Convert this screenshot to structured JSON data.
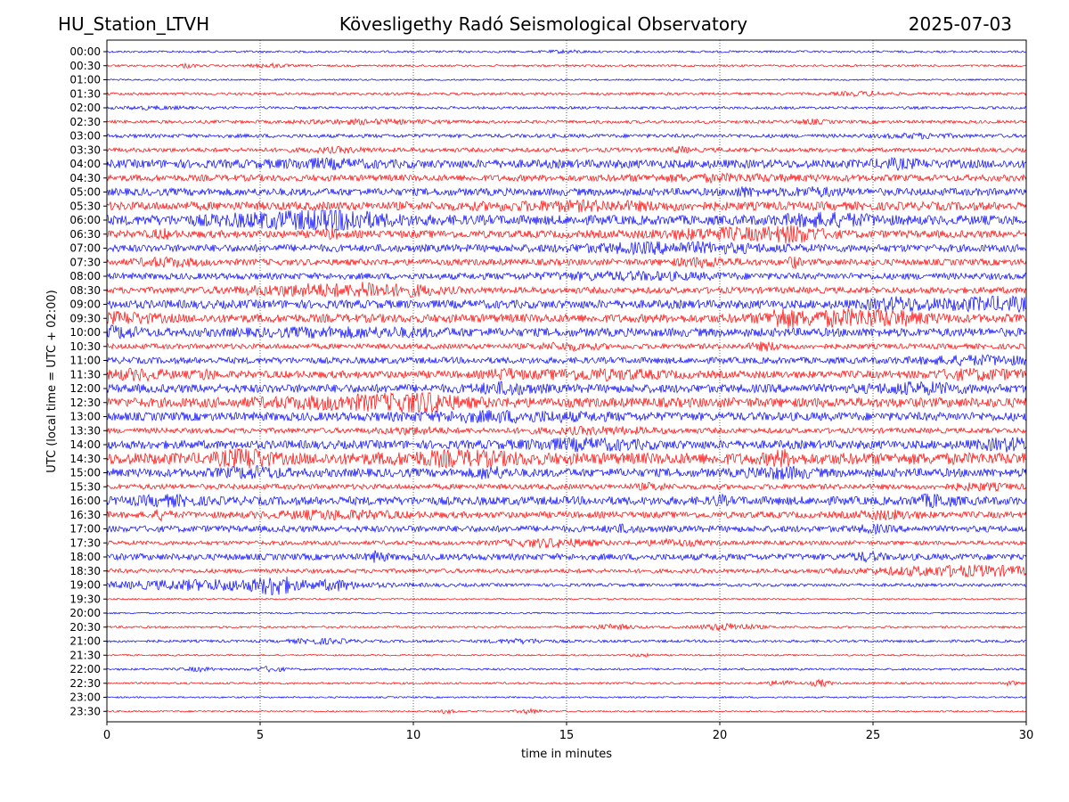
{
  "header": {
    "station": "HU_Station_LTVH",
    "title": "Kövesligethy Radó Seismological Observatory",
    "date": "2025-07-03"
  },
  "chart_data": {
    "type": "line",
    "title": "Kövesligethy Radó Seismological Observatory",
    "xlabel": "time in minutes",
    "ylabel": "UTC (local time = UTC + 02:00)",
    "xlim": [
      0,
      30
    ],
    "xticks": [
      0,
      5,
      10,
      15,
      20,
      25,
      30
    ],
    "grid": "vertical dotted lines at 5, 10, 15, 20, 25",
    "colors": {
      "even_rows": "#0000ff",
      "odd_rows": "#ff0000"
    },
    "rows": [
      {
        "label": "00:00",
        "level": 0.2,
        "bursts": [
          [
            15.0,
            0.6,
            0.2
          ]
        ]
      },
      {
        "label": "00:30",
        "level": 0.2,
        "bursts": [
          [
            2.6,
            0.3,
            0.3
          ],
          [
            5.3,
            0.6,
            0.3
          ]
        ]
      },
      {
        "label": "01:00",
        "level": 0.15,
        "bursts": []
      },
      {
        "label": "01:30",
        "level": 0.25,
        "bursts": [
          [
            24.6,
            0.8,
            0.3
          ]
        ]
      },
      {
        "label": "02:00",
        "level": 0.25,
        "bursts": [
          [
            1.5,
            1.0,
            0.2
          ]
        ]
      },
      {
        "label": "02:30",
        "level": 0.3,
        "bursts": [
          [
            8.5,
            2.0,
            0.3
          ],
          [
            23.0,
            0.5,
            0.3
          ]
        ]
      },
      {
        "label": "03:00",
        "level": 0.35,
        "bursts": [
          [
            26.5,
            1.0,
            0.3
          ]
        ]
      },
      {
        "label": "03:30",
        "level": 0.4,
        "bursts": [
          [
            7.5,
            1.0,
            0.3
          ],
          [
            18.7,
            0.3,
            0.4
          ]
        ]
      },
      {
        "label": "04:00",
        "level": 0.8,
        "bursts": [
          [
            7.0,
            1.5,
            0.4
          ],
          [
            25.8,
            0.8,
            0.4
          ]
        ]
      },
      {
        "label": "04:30",
        "level": 0.6,
        "bursts": [
          [
            20.0,
            3.0,
            0.3
          ]
        ]
      },
      {
        "label": "05:00",
        "level": 0.7,
        "bursts": [
          [
            20.8,
            0.4,
            0.5
          ],
          [
            23.0,
            1.0,
            0.4
          ]
        ]
      },
      {
        "label": "05:30",
        "level": 0.8,
        "bursts": [
          [
            15.5,
            3.0,
            0.4
          ]
        ]
      },
      {
        "label": "06:00",
        "level": 0.9,
        "bursts": [
          [
            6.5,
            3.0,
            1.0
          ],
          [
            7.5,
            0.8,
            1.2
          ],
          [
            23.5,
            1.5,
            0.7
          ]
        ]
      },
      {
        "label": "06:30",
        "level": 0.7,
        "bursts": [
          [
            1.8,
            0.3,
            0.5
          ],
          [
            7.3,
            0.3,
            0.5
          ],
          [
            20.5,
            2.5,
            0.7
          ],
          [
            22.5,
            0.8,
            0.8
          ]
        ]
      },
      {
        "label": "07:00",
        "level": 0.7,
        "bursts": [
          [
            18.5,
            3.0,
            0.6
          ]
        ]
      },
      {
        "label": "07:30",
        "level": 0.6,
        "bursts": [
          [
            2.0,
            1.0,
            0.5
          ],
          [
            19.5,
            1.0,
            0.5
          ],
          [
            22.4,
            0.2,
            0.8
          ]
        ]
      },
      {
        "label": "08:00",
        "level": 0.6,
        "bursts": [
          [
            17.0,
            3.0,
            0.4
          ]
        ]
      },
      {
        "label": "08:30",
        "level": 0.6,
        "bursts": [
          [
            7.0,
            2.5,
            0.8
          ],
          [
            8.6,
            0.3,
            0.8
          ],
          [
            10.0,
            1.0,
            0.5
          ]
        ]
      },
      {
        "label": "09:00",
        "level": 0.8,
        "bursts": [
          [
            25.8,
            1.0,
            0.7
          ],
          [
            29.0,
            2.0,
            0.8
          ]
        ]
      },
      {
        "label": "09:30",
        "level": 0.8,
        "bursts": [
          [
            0.5,
            1.0,
            0.6
          ],
          [
            22.0,
            0.4,
            1.2
          ],
          [
            23.5,
            2.0,
            0.8
          ],
          [
            25.5,
            1.5,
            0.7
          ]
        ]
      },
      {
        "label": "10:00",
        "level": 0.8,
        "bursts": [
          [
            0.3,
            0.8,
            0.6
          ],
          [
            8.0,
            3.0,
            0.4
          ]
        ]
      },
      {
        "label": "10:30",
        "level": 0.5,
        "bursts": [
          [
            15.0,
            1.0,
            0.4
          ],
          [
            21.5,
            0.5,
            0.5
          ]
        ]
      },
      {
        "label": "11:00",
        "level": 0.6,
        "bursts": [
          [
            28.5,
            2.0,
            0.5
          ]
        ]
      },
      {
        "label": "11:30",
        "level": 0.7,
        "bursts": [
          [
            1.0,
            1.0,
            0.6
          ],
          [
            3.2,
            0.3,
            0.6
          ],
          [
            13.0,
            0.5,
            0.6
          ],
          [
            16.0,
            2.0,
            0.6
          ],
          [
            28.5,
            1.5,
            0.6
          ]
        ]
      },
      {
        "label": "12:00",
        "level": 0.8,
        "bursts": [
          [
            13.0,
            1.0,
            0.6
          ],
          [
            26.5,
            1.5,
            0.6
          ]
        ]
      },
      {
        "label": "12:30",
        "level": 0.9,
        "bursts": [
          [
            8.5,
            3.0,
            0.8
          ],
          [
            10.3,
            0.8,
            1.2
          ]
        ]
      },
      {
        "label": "13:00",
        "level": 0.8,
        "bursts": [
          [
            13.0,
            3.0,
            0.5
          ]
        ]
      },
      {
        "label": "13:30",
        "level": 0.5,
        "bursts": [
          [
            10.0,
            1.0,
            0.4
          ],
          [
            16.0,
            2.0,
            0.4
          ]
        ]
      },
      {
        "label": "14:00",
        "level": 0.8,
        "bursts": [
          [
            15.5,
            2.0,
            0.6
          ],
          [
            29.5,
            1.0,
            0.7
          ]
        ]
      },
      {
        "label": "14:30",
        "level": 1.1,
        "bursts": [
          [
            4.5,
            0.7,
            1.4
          ],
          [
            11.5,
            2.0,
            0.7
          ],
          [
            22.0,
            0.4,
            0.8
          ]
        ]
      },
      {
        "label": "15:00",
        "level": 0.8,
        "bursts": [
          [
            4.8,
            1.0,
            0.6
          ],
          [
            12.5,
            0.5,
            0.7
          ],
          [
            22.0,
            1.0,
            0.6
          ]
        ]
      },
      {
        "label": "15:30",
        "level": 0.5,
        "bursts": [
          [
            17.8,
            0.5,
            0.4
          ],
          [
            28.5,
            1.0,
            0.4
          ]
        ]
      },
      {
        "label": "16:00",
        "level": 0.8,
        "bursts": [
          [
            2.0,
            1.0,
            0.5
          ],
          [
            20.0,
            0.2,
            0.6
          ],
          [
            27.0,
            0.6,
            0.7
          ]
        ]
      },
      {
        "label": "16:30",
        "level": 0.6,
        "bursts": [
          [
            1.8,
            0.3,
            0.6
          ],
          [
            7.5,
            2.0,
            0.5
          ],
          [
            25.5,
            1.0,
            0.5
          ]
        ]
      },
      {
        "label": "17:00",
        "level": 0.6,
        "bursts": [
          [
            16.8,
            0.5,
            0.4
          ],
          [
            25.0,
            0.5,
            0.4
          ]
        ]
      },
      {
        "label": "17:30",
        "level": 0.4,
        "bursts": [
          [
            14.5,
            1.5,
            0.6
          ],
          [
            18.5,
            1.0,
            0.4
          ]
        ]
      },
      {
        "label": "18:00",
        "level": 0.6,
        "bursts": [
          [
            8.8,
            0.3,
            0.7
          ],
          [
            24.8,
            0.5,
            0.5
          ]
        ]
      },
      {
        "label": "18:30",
        "level": 0.4,
        "bursts": [
          [
            28.0,
            3.0,
            0.8
          ]
        ]
      },
      {
        "label": "19:00",
        "level": 0.3,
        "bursts": [
          [
            4.0,
            4.0,
            0.9
          ],
          [
            5.5,
            0.5,
            1.1
          ],
          [
            7.5,
            0.5,
            0.5
          ]
        ]
      },
      {
        "label": "19:30",
        "level": 0.15,
        "bursts": []
      },
      {
        "label": "20:00",
        "level": 0.15,
        "bursts": []
      },
      {
        "label": "20:30",
        "level": 0.2,
        "bursts": [
          [
            16.5,
            0.8,
            0.4
          ],
          [
            20.3,
            1.0,
            0.6
          ]
        ]
      },
      {
        "label": "21:00",
        "level": 0.25,
        "bursts": [
          [
            7.0,
            1.0,
            0.4
          ],
          [
            13.5,
            1.0,
            0.3
          ]
        ]
      },
      {
        "label": "21:30",
        "level": 0.15,
        "bursts": [
          [
            17.5,
            0.5,
            0.2
          ]
        ]
      },
      {
        "label": "22:00",
        "level": 0.2,
        "bursts": [
          [
            5.3,
            0.5,
            0.4
          ],
          [
            3.0,
            0.5,
            0.3
          ]
        ]
      },
      {
        "label": "22:30",
        "level": 0.2,
        "bursts": [
          [
            22.0,
            0.5,
            0.4
          ],
          [
            23.3,
            0.3,
            0.6
          ],
          [
            29.5,
            0.2,
            0.4
          ]
        ]
      },
      {
        "label": "23:00",
        "level": 0.15,
        "bursts": []
      },
      {
        "label": "23:30",
        "level": 0.15,
        "bursts": [
          [
            11.1,
            0.2,
            0.4
          ],
          [
            13.8,
            0.4,
            0.4
          ]
        ]
      }
    ]
  }
}
